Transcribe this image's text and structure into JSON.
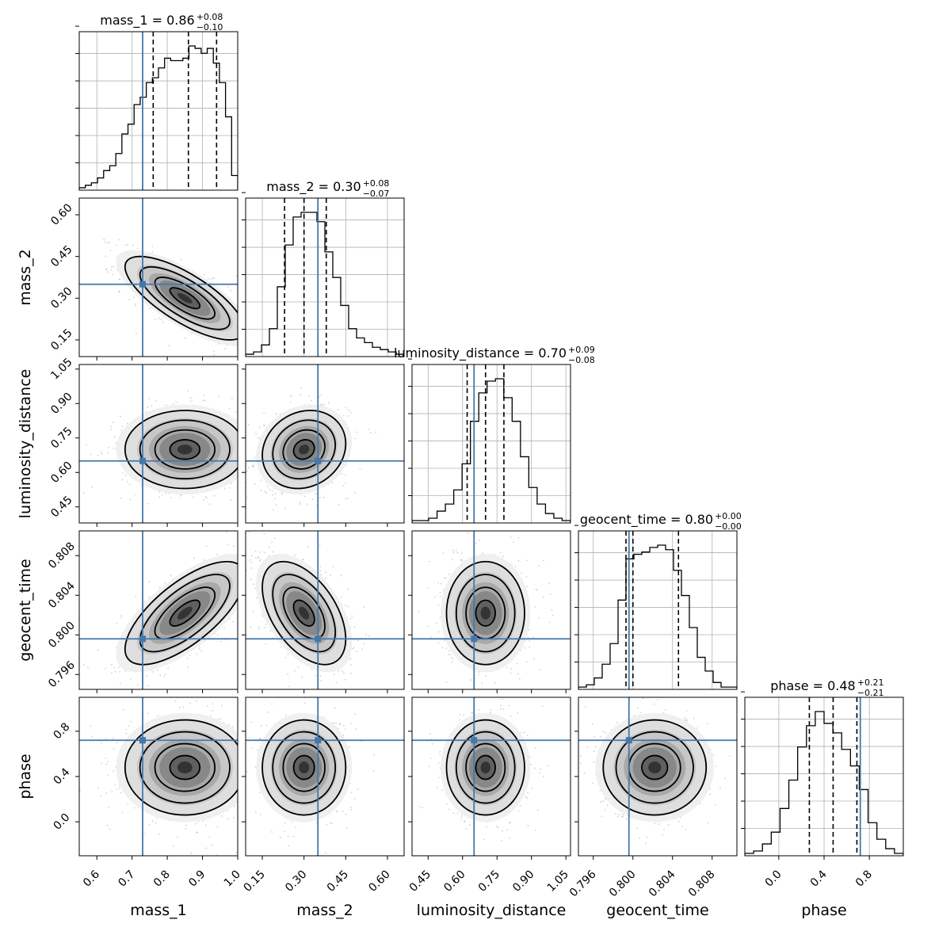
{
  "chart_data": {
    "type": "corner",
    "parameters": [
      {
        "name": "mass_1",
        "label": "mass_1",
        "range": [
          0.55,
          1.0
        ],
        "ticks": [
          0.6,
          0.7,
          0.8,
          0.9,
          1.0
        ],
        "tick_labels": [
          "0.6",
          "0.7",
          "0.8",
          "0.9",
          "1.0"
        ],
        "truth": 0.73,
        "median": 0.86,
        "q_low": 0.76,
        "q_high": 0.94,
        "title_main": "mass_1 = 0.86",
        "title_plus": "+0.08",
        "title_minus": "−0.10",
        "hist": [
          0.01,
          0.02,
          0.03,
          0.05,
          0.08,
          0.1,
          0.15,
          0.23,
          0.27,
          0.35,
          0.38,
          0.44,
          0.46,
          0.5,
          0.54,
          0.53,
          0.53,
          0.54,
          0.59,
          0.58,
          0.56,
          0.58,
          0.52,
          0.44,
          0.3,
          0.06
        ]
      },
      {
        "name": "mass_2",
        "label": "mass_2",
        "range": [
          0.09,
          0.66
        ],
        "ticks": [
          0.15,
          0.3,
          0.45,
          0.6
        ],
        "tick_labels": [
          "0.15",
          "0.30",
          "0.45",
          "0.60"
        ],
        "truth": 0.35,
        "median": 0.3,
        "q_low": 0.23,
        "q_high": 0.38,
        "title_main": "mass_2 = 0.30",
        "title_plus": "+0.08",
        "title_minus": "−0.07",
        "hist": [
          0.01,
          0.02,
          0.05,
          0.12,
          0.3,
          0.48,
          0.6,
          0.62,
          0.62,
          0.58,
          0.45,
          0.34,
          0.22,
          0.12,
          0.08,
          0.06,
          0.04,
          0.03,
          0.02,
          0.01
        ]
      },
      {
        "name": "luminosity_distance",
        "label": "luminosity_distance",
        "range": [
          0.38,
          1.07
        ],
        "ticks": [
          0.45,
          0.6,
          0.75,
          0.9,
          1.05
        ],
        "tick_labels": [
          "0.45",
          "0.60",
          "0.75",
          "0.90",
          "1.05"
        ],
        "truth": 0.65,
        "median": 0.7,
        "q_low": 0.62,
        "q_high": 0.78,
        "title_main": "luminosity_distance = 0.70",
        "title_plus": "+0.09",
        "title_minus": "−0.08",
        "hist": [
          0.01,
          0.01,
          0.02,
          0.05,
          0.08,
          0.14,
          0.25,
          0.43,
          0.55,
          0.6,
          0.61,
          0.53,
          0.43,
          0.28,
          0.15,
          0.08,
          0.04,
          0.02,
          0.01
        ]
      },
      {
        "name": "geocent_time",
        "label": "geocent_time",
        "range": [
          0.7945,
          0.8105
        ],
        "ticks": [
          0.796,
          0.8,
          0.804,
          0.808
        ],
        "tick_labels": [
          "0.796",
          "0.800",
          "0.804",
          "0.808"
        ],
        "truth": 0.7996,
        "median": 0.8,
        "q_low": 0.7993,
        "q_high": 0.8046,
        "title_main": "geocent_time = 0.80",
        "title_plus": "+0.00",
        "title_minus": "−0.00",
        "hist": [
          0.01,
          0.02,
          0.05,
          0.11,
          0.2,
          0.39,
          0.57,
          0.59,
          0.6,
          0.62,
          0.63,
          0.61,
          0.52,
          0.41,
          0.27,
          0.14,
          0.08,
          0.03,
          0.01,
          0.01
        ]
      },
      {
        "name": "phase",
        "label": "phase",
        "range": [
          -0.3,
          1.1
        ],
        "ticks": [
          0.0,
          0.4,
          0.8
        ],
        "tick_labels": [
          "0.0",
          "0.4",
          "0.8"
        ],
        "truth": 0.72,
        "median": 0.48,
        "q_low": 0.27,
        "q_high": 0.69,
        "title_main": "phase = 0.48",
        "title_plus": "+0.21",
        "title_minus": "−0.21",
        "hist": [
          0.01,
          0.02,
          0.05,
          0.1,
          0.2,
          0.32,
          0.46,
          0.55,
          0.61,
          0.56,
          0.52,
          0.45,
          0.38,
          0.28,
          0.14,
          0.07,
          0.03,
          0.01
        ]
      }
    ],
    "pairs": [
      {
        "x": "mass_1",
        "y": "mass_2",
        "center": [
          0.85,
          0.3
        ],
        "spread": [
          0.085,
          0.075
        ],
        "correlation": -0.75
      },
      {
        "x": "mass_1",
        "y": "luminosity_distance",
        "center": [
          0.85,
          0.7
        ],
        "spread": [
          0.085,
          0.085
        ],
        "correlation": 0.0
      },
      {
        "x": "mass_1",
        "y": "geocent_time",
        "center": [
          0.85,
          0.8022
        ],
        "spread": [
          0.085,
          0.0026
        ],
        "correlation": 0.7
      },
      {
        "x": "mass_1",
        "y": "phase",
        "center": [
          0.85,
          0.48
        ],
        "spread": [
          0.085,
          0.21
        ],
        "correlation": 0.0
      },
      {
        "x": "mass_2",
        "y": "luminosity_distance",
        "center": [
          0.3,
          0.7
        ],
        "spread": [
          0.075,
          0.085
        ],
        "correlation": 0.15
      },
      {
        "x": "mass_2",
        "y": "geocent_time",
        "center": [
          0.3,
          0.8022
        ],
        "spread": [
          0.075,
          0.0026
        ],
        "correlation": -0.5
      },
      {
        "x": "mass_2",
        "y": "phase",
        "center": [
          0.3,
          0.48
        ],
        "spread": [
          0.075,
          0.21
        ],
        "correlation": 0.0
      },
      {
        "x": "luminosity_distance",
        "y": "geocent_time",
        "center": [
          0.7,
          0.8022
        ],
        "spread": [
          0.085,
          0.0026
        ],
        "correlation": 0.0
      },
      {
        "x": "luminosity_distance",
        "y": "phase",
        "center": [
          0.7,
          0.48
        ],
        "spread": [
          0.085,
          0.21
        ],
        "correlation": 0.0
      },
      {
        "x": "geocent_time",
        "y": "phase",
        "center": [
          0.8022,
          0.48
        ],
        "spread": [
          0.0026,
          0.21
        ],
        "correlation": 0.0
      }
    ],
    "contour_levels_sigma": [
      0.5,
      1.0,
      1.5,
      2.0
    ],
    "truth_color": "#4477aa",
    "grid": true
  }
}
